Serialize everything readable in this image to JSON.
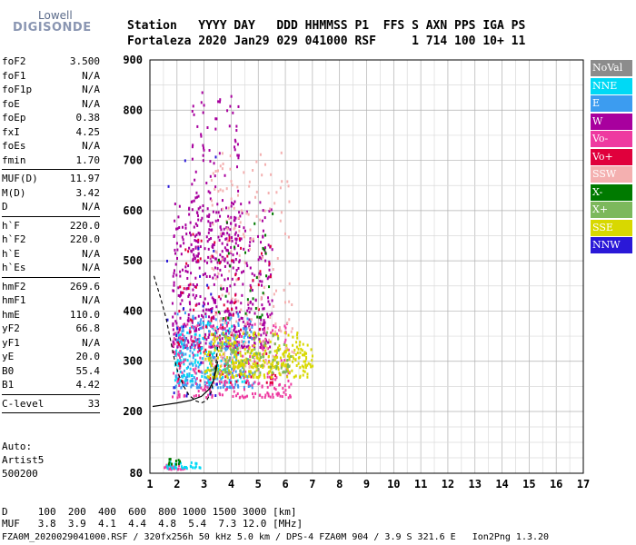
{
  "logo": {
    "line1": "Lowell",
    "line2": "DIGISONDE"
  },
  "header": {
    "line1": "Station   YYYY DAY   DDD HHMMSS P1  FFS S AXN PPS IGA PS",
    "line2": "Fortaleza 2020 Jan29 029 041000 RSF     1 714 100 10+ 11"
  },
  "params": {
    "group1": [
      {
        "name": "foF2",
        "value": "3.500"
      },
      {
        "name": "foF1",
        "value": "N/A"
      },
      {
        "name": "foF1p",
        "value": "N/A"
      },
      {
        "name": "foE",
        "value": "N/A"
      },
      {
        "name": "foEp",
        "value": "0.38"
      },
      {
        "name": "fxI",
        "value": "4.25"
      },
      {
        "name": "foEs",
        "value": "N/A"
      },
      {
        "name": "fmin",
        "value": "1.70"
      }
    ],
    "group2": [
      {
        "name": "MUF(D)",
        "value": "11.97"
      },
      {
        "name": "M(D)",
        "value": "3.42"
      },
      {
        "name": "D",
        "value": "N/A"
      }
    ],
    "group3": [
      {
        "name": "h`F",
        "value": "220.0"
      },
      {
        "name": "h`F2",
        "value": "220.0"
      },
      {
        "name": "h`E",
        "value": "N/A"
      },
      {
        "name": "h`Es",
        "value": "N/A"
      }
    ],
    "group4": [
      {
        "name": "hmF2",
        "value": "269.6"
      },
      {
        "name": "hmF1",
        "value": "N/A"
      },
      {
        "name": "hmE",
        "value": "110.0"
      },
      {
        "name": "yF2",
        "value": "66.8"
      },
      {
        "name": "yF1",
        "value": "N/A"
      },
      {
        "name": "yE",
        "value": "20.0"
      },
      {
        "name": "B0",
        "value": "55.4"
      },
      {
        "name": "B1",
        "value": "4.42"
      }
    ],
    "group5": [
      {
        "name": "C-level",
        "value": "33"
      }
    ]
  },
  "auto": {
    "line1": "Auto:",
    "line2": "Artist5",
    "line3": "500200"
  },
  "legend": [
    {
      "label": "NoVal",
      "color": "#8c8c8c"
    },
    {
      "label": "NNE",
      "color": "#00d9f5"
    },
    {
      "label": "E",
      "color": "#3c9cf0"
    },
    {
      "label": "W",
      "color": "#a8009e"
    },
    {
      "label": "Vo-",
      "color": "#ee3aa0"
    },
    {
      "label": "Vo+",
      "color": "#e0003c"
    },
    {
      "label": "SSW",
      "color": "#f4b0b0"
    },
    {
      "label": "X-",
      "color": "#007a00"
    },
    {
      "label": "X+",
      "color": "#7cb85c"
    },
    {
      "label": "SSE",
      "color": "#d8d800"
    },
    {
      "label": "NNW",
      "color": "#2a18d8"
    }
  ],
  "bottom": {
    "line1": "D     100  200  400  600  800 1000 1500 3000 [km]",
    "line2": "MUF   3.8  3.9  4.1  4.4  4.8  5.4  7.3 12.0 [MHz]"
  },
  "footer": "FZA0M_2020029041000.RSF / 320fx256h 50 kHz 5.0 km / DPS-4 FZA0M 904 / 3.9 S 321.6 E   Ion2Png 1.3.20",
  "chart_data": {
    "type": "scatter",
    "title": "",
    "xlabel": "",
    "ylabel": "",
    "xlim": [
      1,
      17
    ],
    "ylim": [
      80,
      900
    ],
    "x_ticks": [
      "1",
      "2",
      "3",
      "4",
      "5",
      "6",
      "7",
      "8",
      "9",
      "10",
      "11",
      "12",
      "13",
      "14",
      "15",
      "16",
      "17"
    ],
    "y_ticks": [
      "80",
      "200",
      "300",
      "400",
      "500",
      "600",
      "700",
      "800",
      "900"
    ],
    "y_tick_values": [
      80,
      200,
      300,
      400,
      500,
      600,
      700,
      800,
      900
    ],
    "grid": true,
    "echo_regions": [
      {
        "name": "W",
        "color": "#a8009e",
        "x": [
          1.8,
          5.5
        ],
        "y": [
          330,
          620
        ],
        "count": 520
      },
      {
        "name": "W",
        "color": "#a8009e",
        "x": [
          2.5,
          4.3
        ],
        "y": [
          500,
          840
        ],
        "count": 150
      },
      {
        "name": "E",
        "color": "#3c9cf0",
        "x": [
          1.9,
          4.8
        ],
        "y": [
          250,
          400
        ],
        "count": 260
      },
      {
        "name": "NNE",
        "color": "#00d9f5",
        "x": [
          1.9,
          4.5
        ],
        "y": [
          260,
          380
        ],
        "count": 140
      },
      {
        "name": "Vo-",
        "color": "#ee3aa0",
        "x": [
          1.8,
          6.2
        ],
        "y": [
          230,
          380
        ],
        "count": 260
      },
      {
        "name": "Vo+",
        "color": "#e0003c",
        "x": [
          2.0,
          5.6
        ],
        "y": [
          260,
          560
        ],
        "count": 110
      },
      {
        "name": "SSW",
        "color": "#f4b0b0",
        "x": [
          3.2,
          6.3
        ],
        "y": [
          290,
          720
        ],
        "count": 200
      },
      {
        "name": "SSE",
        "color": "#d8d800",
        "x": [
          3.0,
          6.8
        ],
        "y": [
          270,
          360
        ],
        "count": 220
      },
      {
        "name": "SSE",
        "color": "#d8d800",
        "x": [
          4.0,
          7.0
        ],
        "y": [
          290,
          330
        ],
        "count": 120
      },
      {
        "name": "X+",
        "color": "#7cb85c",
        "x": [
          3.2,
          6.2
        ],
        "y": [
          280,
          360
        ],
        "count": 90
      },
      {
        "name": "X-",
        "color": "#007a00",
        "x": [
          3.5,
          5.5
        ],
        "y": [
          380,
          620
        ],
        "count": 30
      },
      {
        "name": "NNW",
        "color": "#2a18d8",
        "x": [
          1.6,
          3.5
        ],
        "y": [
          230,
          720
        ],
        "count": 25
      },
      {
        "name": "Vo-",
        "color": "#ee3aa0",
        "x": [
          1.5,
          2.3
        ],
        "y": [
          90,
          100
        ],
        "count": 25
      },
      {
        "name": "NNE",
        "color": "#00d9f5",
        "x": [
          1.6,
          2.9
        ],
        "y": [
          92,
          106
        ],
        "count": 30
      },
      {
        "name": "X-",
        "color": "#007a00",
        "x": [
          1.6,
          2.2
        ],
        "y": [
          100,
          112
        ],
        "count": 10
      }
    ],
    "profile_curve": [
      {
        "x": 1.15,
        "y": 470
      },
      {
        "x": 1.4,
        "y": 425
      },
      {
        "x": 1.6,
        "y": 385
      },
      {
        "x": 1.75,
        "y": 345
      },
      {
        "x": 1.9,
        "y": 305
      },
      {
        "x": 2.05,
        "y": 275
      },
      {
        "x": 2.25,
        "y": 250
      },
      {
        "x": 2.45,
        "y": 232
      },
      {
        "x": 2.7,
        "y": 221
      },
      {
        "x": 2.9,
        "y": 217
      },
      {
        "x": 3.1,
        "y": 222
      },
      {
        "x": 3.25,
        "y": 238
      },
      {
        "x": 3.35,
        "y": 262
      },
      {
        "x": 3.45,
        "y": 300
      },
      {
        "x": 3.5,
        "y": 330
      }
    ],
    "trace_curve": [
      {
        "x": 1.1,
        "y": 210
      },
      {
        "x": 1.5,
        "y": 213
      },
      {
        "x": 2.0,
        "y": 217
      },
      {
        "x": 2.5,
        "y": 222
      },
      {
        "x": 2.9,
        "y": 230
      },
      {
        "x": 3.2,
        "y": 245
      },
      {
        "x": 3.35,
        "y": 262
      },
      {
        "x": 3.45,
        "y": 285
      },
      {
        "x": 3.5,
        "y": 300
      }
    ]
  }
}
